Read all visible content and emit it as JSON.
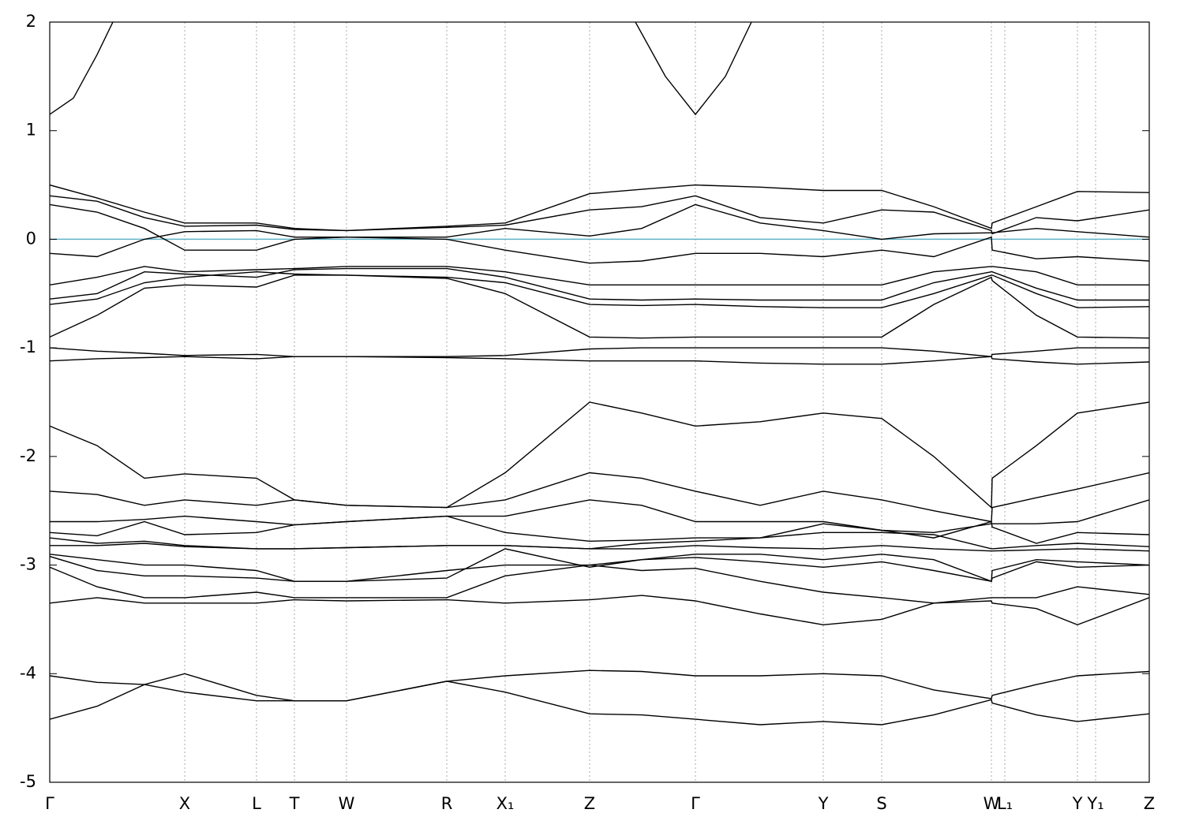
{
  "chart_data": {
    "type": "line",
    "x": [
      0,
      60,
      120,
      171,
      262,
      310,
      376,
      503,
      577,
      684,
      750,
      818,
      900,
      980,
      1054,
      1120,
      1193,
      1194,
      1250,
      1302,
      1393
    ],
    "xlim": [
      0,
      1393
    ],
    "xticks": [
      {
        "value": 0,
        "label": "Γ"
      },
      {
        "value": 171,
        "label": "X"
      },
      {
        "value": 262,
        "label": "L"
      },
      {
        "value": 310,
        "label": "T"
      },
      {
        "value": 376,
        "label": "W"
      },
      {
        "value": 503,
        "label": "R"
      },
      {
        "value": 577,
        "label": "X₁"
      },
      {
        "value": 684,
        "label": "Z"
      },
      {
        "value": 818,
        "label": "Γ"
      },
      {
        "value": 980,
        "label": "Y"
      },
      {
        "value": 1054,
        "label": "S"
      },
      {
        "value": 1193,
        "label": "W"
      },
      {
        "value": 1210,
        "label": "L₁"
      },
      {
        "value": 1302,
        "label": "Y"
      },
      {
        "value": 1325,
        "label": "Y₁"
      },
      {
        "value": 1393,
        "label": "Z"
      }
    ],
    "ylim": [
      -5,
      2
    ],
    "yticks": [
      -5,
      -4,
      -3,
      -2,
      -1,
      0,
      1,
      2
    ],
    "xgrid": true,
    "reference_line": {
      "value": 0,
      "color": "#5fb3c6"
    },
    "series": [
      {
        "color": "#000000",
        "x": [
          0,
          30,
          60,
          80,
          400,
          742,
          780,
          818,
          856,
          889
        ],
        "values": [
          1.15,
          1.3,
          1.7,
          2.0,
          null,
          2.0,
          1.5,
          1.15,
          1.5,
          2.0
        ]
      },
      {
        "color": "#000000",
        "values": [
          0.5,
          0.38,
          0.25,
          0.15,
          0.15,
          0.1,
          0.08,
          0.12,
          0.15,
          0.42,
          0.46,
          0.5,
          0.48,
          0.45,
          0.45,
          0.3,
          0.1,
          0.15,
          0.3,
          0.44,
          0.43
        ]
      },
      {
        "color": "#000000",
        "values": [
          0.4,
          0.35,
          0.2,
          0.12,
          0.13,
          0.09,
          0.08,
          0.11,
          0.13,
          0.27,
          0.3,
          0.4,
          0.2,
          0.15,
          0.27,
          0.25,
          0.08,
          0.05,
          0.2,
          0.17,
          0.27
        ]
      },
      {
        "color": "#000000",
        "values": [
          0.32,
          0.25,
          0.1,
          -0.1,
          -0.1,
          0.0,
          0.02,
          0.02,
          0.1,
          0.03,
          0.1,
          0.32,
          0.15,
          0.08,
          0.0,
          0.05,
          0.06,
          0.06,
          0.1,
          0.07,
          0.02
        ]
      },
      {
        "color": "#000000",
        "values": [
          -0.13,
          -0.16,
          0.0,
          0.07,
          0.08,
          0.02,
          0.02,
          0.0,
          -0.1,
          -0.22,
          -0.2,
          -0.13,
          -0.13,
          -0.16,
          -0.1,
          -0.16,
          0.02,
          -0.1,
          -0.18,
          -0.16,
          -0.2
        ]
      },
      {
        "color": "#000000",
        "values": [
          -0.42,
          -0.35,
          -0.25,
          -0.3,
          -0.28,
          -0.27,
          -0.25,
          -0.25,
          -0.3,
          -0.42,
          -0.42,
          -0.42,
          -0.42,
          -0.42,
          -0.42,
          -0.3,
          -0.25,
          -0.25,
          -0.3,
          -0.42,
          -0.42
        ]
      },
      {
        "color": "#000000",
        "values": [
          -0.55,
          -0.5,
          -0.3,
          -0.32,
          -0.35,
          -0.28,
          -0.27,
          -0.27,
          -0.35,
          -0.55,
          -0.56,
          -0.55,
          -0.56,
          -0.56,
          -0.56,
          -0.4,
          -0.3,
          -0.3,
          -0.45,
          -0.56,
          -0.56
        ]
      },
      {
        "color": "#000000",
        "values": [
          -0.6,
          -0.55,
          -0.4,
          -0.35,
          -0.3,
          -0.32,
          -0.33,
          -0.35,
          -0.4,
          -0.6,
          -0.61,
          -0.6,
          -0.62,
          -0.63,
          -0.63,
          -0.5,
          -0.33,
          -0.33,
          -0.5,
          -0.63,
          -0.62
        ]
      },
      {
        "color": "#000000",
        "values": [
          -0.9,
          -0.7,
          -0.45,
          -0.42,
          -0.44,
          -0.33,
          -0.33,
          -0.36,
          -0.5,
          -0.9,
          -0.91,
          -0.9,
          -0.9,
          -0.9,
          -0.9,
          -0.6,
          -0.35,
          -0.38,
          -0.7,
          -0.9,
          -0.91
        ]
      },
      {
        "color": "#000000",
        "values": [
          -1.0,
          -1.03,
          -1.05,
          -1.07,
          -1.06,
          -1.08,
          -1.08,
          -1.08,
          -1.07,
          -1.01,
          -1.0,
          -1.0,
          -1.0,
          -1.0,
          -1.0,
          -1.03,
          -1.08,
          -1.06,
          -1.03,
          -1.0,
          -1.0
        ]
      },
      {
        "color": "#000000",
        "values": [
          -1.12,
          -1.1,
          -1.09,
          -1.08,
          -1.1,
          -1.08,
          -1.08,
          -1.09,
          -1.1,
          -1.12,
          -1.12,
          -1.12,
          -1.14,
          -1.15,
          -1.15,
          -1.12,
          -1.08,
          -1.1,
          -1.13,
          -1.15,
          -1.13
        ]
      },
      {
        "color": "#000000",
        "values": [
          -1.72,
          -1.9,
          -2.2,
          -2.16,
          -2.2,
          -2.4,
          -2.45,
          -2.47,
          -2.15,
          -1.5,
          -1.6,
          -1.72,
          -1.68,
          -1.6,
          -1.65,
          -2.0,
          -2.47,
          -2.2,
          -1.9,
          -1.6,
          -1.5
        ]
      },
      {
        "color": "#000000",
        "values": [
          -2.32,
          -2.35,
          -2.45,
          -2.4,
          -2.45,
          -2.4,
          -2.45,
          -2.47,
          -2.4,
          -2.15,
          -2.2,
          -2.32,
          -2.45,
          -2.32,
          -2.4,
          -2.5,
          -2.6,
          -2.47,
          -2.38,
          -2.3,
          -2.15
        ]
      },
      {
        "color": "#000000",
        "values": [
          -2.6,
          -2.6,
          -2.58,
          -2.55,
          -2.6,
          -2.63,
          -2.6,
          -2.55,
          -2.55,
          -2.4,
          -2.45,
          -2.6,
          -2.6,
          -2.6,
          -2.68,
          -2.7,
          -2.62,
          -2.62,
          -2.62,
          -2.6,
          -2.4
        ]
      },
      {
        "color": "#000000",
        "values": [
          -2.7,
          -2.73,
          -2.6,
          -2.72,
          -2.7,
          -2.63,
          -2.6,
          -2.55,
          -2.7,
          -2.78,
          -2.77,
          -2.75,
          -2.75,
          -2.62,
          -2.68,
          -2.75,
          -2.6,
          -2.65,
          -2.8,
          -2.7,
          -2.72
        ]
      },
      {
        "color": "#000000",
        "values": [
          -2.75,
          -2.8,
          -2.78,
          -2.82,
          -2.85,
          -2.85,
          -2.84,
          -2.82,
          -2.82,
          -2.85,
          -2.8,
          -2.78,
          -2.75,
          -2.7,
          -2.7,
          -2.72,
          -2.85,
          -2.85,
          -2.82,
          -2.8,
          -2.83
        ]
      },
      {
        "color": "#000000",
        "values": [
          -2.82,
          -2.82,
          -2.8,
          -2.83,
          -2.85,
          -2.85,
          -2.84,
          -2.82,
          -2.82,
          -2.85,
          -2.85,
          -2.82,
          -2.84,
          -2.85,
          -2.82,
          -2.85,
          -2.87,
          -2.87,
          -2.86,
          -2.85,
          -2.87
        ]
      },
      {
        "color": "#000000",
        "values": [
          -2.9,
          -2.95,
          -3.0,
          -3.0,
          -3.05,
          -3.15,
          -3.15,
          -3.05,
          -3.0,
          -3.0,
          -2.95,
          -2.9,
          -2.9,
          -2.95,
          -2.9,
          -2.95,
          -3.15,
          -3.05,
          -2.95,
          -2.97,
          -3.0
        ]
      },
      {
        "color": "#000000",
        "values": [
          -2.92,
          -3.05,
          -3.1,
          -3.1,
          -3.12,
          -3.15,
          -3.15,
          -3.12,
          -2.85,
          -3.02,
          -2.95,
          -2.93,
          -2.97,
          -3.02,
          -2.97,
          -3.05,
          -3.15,
          -3.12,
          -2.97,
          -3.02,
          -3.0
        ]
      },
      {
        "color": "#000000",
        "values": [
          -3.02,
          -3.2,
          -3.3,
          -3.3,
          -3.25,
          -3.3,
          -3.3,
          -3.3,
          -3.1,
          -3.0,
          -3.05,
          -3.03,
          -3.15,
          -3.25,
          -3.3,
          -3.35,
          -3.3,
          -3.3,
          -3.3,
          -3.2,
          -3.27
        ]
      },
      {
        "color": "#000000",
        "values": [
          -3.35,
          -3.3,
          -3.35,
          -3.35,
          -3.35,
          -3.32,
          -3.33,
          -3.32,
          -3.35,
          -3.32,
          -3.28,
          -3.33,
          -3.45,
          -3.55,
          -3.5,
          -3.35,
          -3.33,
          -3.35,
          -3.4,
          -3.55,
          -3.3
        ]
      },
      {
        "color": "#000000",
        "values": [
          -4.02,
          -4.08,
          -4.1,
          -4.0,
          -4.2,
          -4.25,
          -4.25,
          -4.07,
          -4.02,
          -3.97,
          -3.98,
          -4.02,
          -4.02,
          -4.0,
          -4.02,
          -4.15,
          -4.23,
          -4.2,
          -4.1,
          -4.02,
          -3.98
        ]
      },
      {
        "color": "#000000",
        "values": [
          -4.42,
          -4.3,
          -4.1,
          -4.17,
          -4.25,
          -4.25,
          -4.25,
          -4.07,
          -4.17,
          -4.37,
          -4.38,
          -4.42,
          -4.47,
          -4.44,
          -4.47,
          -4.38,
          -4.24,
          -4.27,
          -4.38,
          -4.44,
          -4.37
        ]
      }
    ]
  }
}
